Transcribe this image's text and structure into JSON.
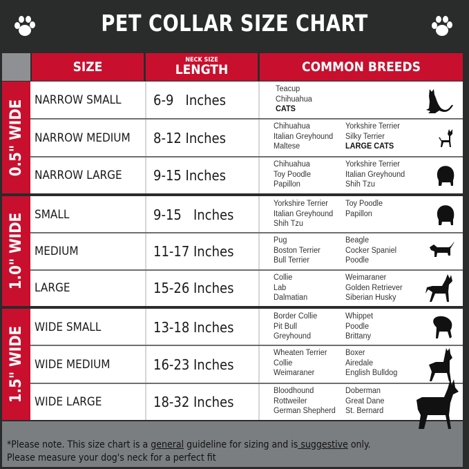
{
  "title": "PET COLLAR SIZE CHART",
  "header": {
    "size": "SIZE",
    "neck_small": "NECK SIZE",
    "neck_big": "LENGTH",
    "breeds": "COMMON BREEDS"
  },
  "colors": {
    "red": "#c8102e",
    "dark": "#2a2b2b",
    "footer": "#7b7e81"
  },
  "groups": [
    {
      "label": "0.5\" WIDE",
      "rows": [
        {
          "size": "NARROW SMALL",
          "length": "6-9   Inches",
          "col1": [
            "Teacup",
            "Chihuahua",
            "CATS"
          ],
          "col2": [],
          "bold": [
            "CATS"
          ],
          "icon": "cat-icon"
        },
        {
          "size": "NARROW MEDIUM",
          "length": "8-12 Inches",
          "col1": [
            "Chihuahua",
            "Italian Greyhound",
            "Maltese"
          ],
          "col2": [
            "Yorkshire Terrier",
            "Silky Terrier",
            "LARGE CATS"
          ],
          "bold": [
            "LARGE CATS"
          ],
          "icon": "chihuahua-icon"
        },
        {
          "size": "NARROW LARGE",
          "length": "9-15 Inches",
          "col1": [
            "Chihuahua",
            "Toy Poodle",
            "Papillon"
          ],
          "col2": [
            "Yorkshire Terrier",
            "Italian Greyhound",
            "Shih Tzu"
          ],
          "bold": [],
          "icon": "fluffy-dog-icon"
        }
      ]
    },
    {
      "label": "1.0\" WIDE",
      "rows": [
        {
          "size": "SMALL",
          "length": "9-15   Inches",
          "col1": [
            "Yorkshire Terrier",
            "Italian Greyhound",
            "Shih Tzu"
          ],
          "col2": [
            "Toy Poodle",
            "Papillon"
          ],
          "bold": [],
          "icon": "fluffy-dog-icon"
        },
        {
          "size": "MEDIUM",
          "length": "11-17 Inches",
          "col1": [
            "Pug",
            "Boston Terrier",
            "Bull Terrier"
          ],
          "col2": [
            "Beagle",
            "Cocker Spaniel",
            "Poodle"
          ],
          "bold": [],
          "icon": "dachshund-icon"
        },
        {
          "size": "LARGE",
          "length": "15-26 Inches",
          "col1": [
            "Collie",
            "Lab",
            "Dalmatian"
          ],
          "col2": [
            "Weimaraner",
            "Golden Retriever",
            "Siberian Husky"
          ],
          "bold": [],
          "icon": "shepherd-dog-icon"
        }
      ]
    },
    {
      "label": "1.5\" WIDE",
      "rows": [
        {
          "size": "WIDE SMALL",
          "length": "13-18 Inches",
          "col1": [
            "Border Collie",
            "Pit Bull",
            "Greyhound"
          ],
          "col2": [
            "Whippet",
            "Poodle",
            "Brittany"
          ],
          "bold": [],
          "icon": "bulldog-icon"
        },
        {
          "size": "WIDE MEDIUM",
          "length": "16-23 Inches",
          "col1": [
            "Wheaten Terrier",
            "Collie",
            "Weimaraner"
          ],
          "col2": [
            "Boxer",
            "Airedale",
            "English Bulldog"
          ],
          "bold": [],
          "icon": "pitbull-icon"
        },
        {
          "size": "WIDE LARGE",
          "length": "18-32 Inches",
          "col1": [
            "Bloodhound",
            "Rottweiler",
            "German Shepherd"
          ],
          "col2": [
            "Doberman",
            "Great Dane",
            "St. Bernard"
          ],
          "bold": [],
          "icon": "doberman-icon"
        }
      ]
    }
  ],
  "footer": {
    "line1_a": "*Please note. This size chart is a ",
    "line1_u1": "general",
    "line1_b": " guideline for sizing and is",
    "line1_u2": " suggestive",
    "line1_c": " only.",
    "line2": "Please measure your dog's neck for a perfect fit"
  }
}
